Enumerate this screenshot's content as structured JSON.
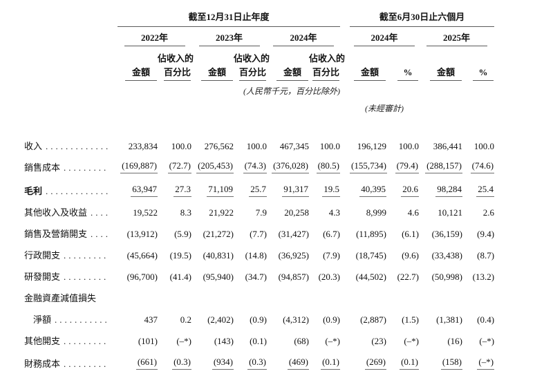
{
  "colors": {
    "background": "#ffffff",
    "text": "#111111",
    "rule": "#5a5a5a"
  },
  "table": {
    "groups": [
      {
        "title": "截至12月31日止年度"
      },
      {
        "title": "截至6月30日止六個月"
      }
    ],
    "years": [
      {
        "label": "2022年",
        "amount_header": "金額",
        "percent_header_line1": "佔收入的",
        "percent_header_line2": "百分比"
      },
      {
        "label": "2023年",
        "amount_header": "金額",
        "percent_header_line1": "佔收入的",
        "percent_header_line2": "百分比"
      },
      {
        "label": "2024年",
        "amount_header": "金額",
        "percent_header_line1": "佔收入的",
        "percent_header_line2": "百分比"
      },
      {
        "label": "2024年",
        "amount_header": "金額",
        "percent_header": "%"
      },
      {
        "label": "2025年",
        "amount_header": "金額",
        "percent_header": "%"
      }
    ],
    "notes": {
      "units": "(人民幣千元，百分比除外)",
      "unaudited": "(未經審計)"
    },
    "rows": [
      {
        "label": "收入",
        "values": [
          "233,834",
          "100.0",
          "276,562",
          "100.0",
          "467,345",
          "100.0",
          "196,129",
          "100.0",
          "386,441",
          "100.0"
        ]
      },
      {
        "label": "銷售成本",
        "underline": true,
        "values": [
          "(169,887)",
          "(72.7)",
          "(205,453)",
          "(74.3)",
          "(376,028)",
          "(80.5)",
          "(155,734)",
          "(79.4)",
          "(288,157)",
          "(74.6)"
        ]
      },
      {
        "label": "毛利",
        "bold": true,
        "underline": true,
        "values": [
          "63,947",
          "27.3",
          "71,109",
          "25.7",
          "91,317",
          "19.5",
          "40,395",
          "20.6",
          "98,284",
          "25.4"
        ]
      },
      {
        "label": "其他收入及收益",
        "values": [
          "19,522",
          "8.3",
          "21,922",
          "7.9",
          "20,258",
          "4.3",
          "8,999",
          "4.6",
          "10,121",
          "2.6"
        ]
      },
      {
        "label": "銷售及營銷開支",
        "values": [
          "(13,912)",
          "(5.9)",
          "(21,272)",
          "(7.7)",
          "(31,427)",
          "(6.7)",
          "(11,895)",
          "(6.1)",
          "(36,159)",
          "(9.4)"
        ]
      },
      {
        "label": "行政開支",
        "values": [
          "(45,664)",
          "(19.5)",
          "(40,831)",
          "(14.8)",
          "(36,925)",
          "(7.9)",
          "(18,745)",
          "(9.6)",
          "(33,438)",
          "(8.7)"
        ]
      },
      {
        "label": "研發開支",
        "values": [
          "(96,700)",
          "(41.4)",
          "(95,940)",
          "(34.7)",
          "(94,857)",
          "(20.3)",
          "(44,502)",
          "(22.7)",
          "(50,998)",
          "(13.2)"
        ]
      },
      {
        "label": "金融資產減值損失",
        "label2": "淨額",
        "values": [
          "437",
          "0.2",
          "(2,402)",
          "(0.9)",
          "(4,312)",
          "(0.9)",
          "(2,887)",
          "(1.5)",
          "(1,381)",
          "(0.4)"
        ]
      },
      {
        "label": "其他開支",
        "values": [
          "(101)",
          "(–*)",
          "(143)",
          "(0.1)",
          "(68)",
          "(–*)",
          "(23)",
          "(–*)",
          "(16)",
          "(–*)"
        ]
      },
      {
        "label": "財務成本",
        "underline": true,
        "values": [
          "(661)",
          "(0.3)",
          "(934)",
          "(0.3)",
          "(469)",
          "(0.1)",
          "(269)",
          "(0.1)",
          "(158)",
          "(–*)"
        ]
      }
    ]
  }
}
